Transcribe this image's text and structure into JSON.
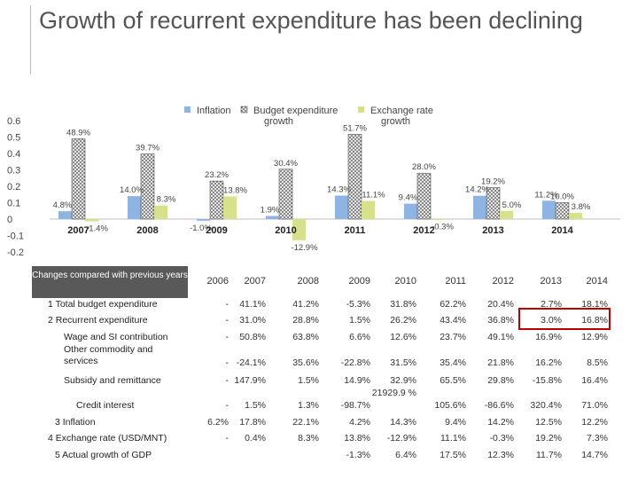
{
  "title": "Growth of recurrent expenditure has been declining",
  "chart_data": {
    "type": "bar",
    "categories": [
      "2007",
      "2008",
      "2009",
      "2010",
      "2011",
      "2012",
      "2013",
      "2014"
    ],
    "series": [
      {
        "name": "Inflation",
        "color": "#8eb4e3",
        "values": [
          4.8,
          14.0,
          -1.0,
          1.9,
          14.3,
          9.4,
          14.2,
          11.2
        ]
      },
      {
        "name": "Budget expenditure growth",
        "color": "#d9d9d9",
        "values": [
          48.9,
          39.7,
          23.2,
          30.4,
          51.7,
          28.0,
          19.2,
          10.0
        ]
      },
      {
        "name": "Exchange rate growth",
        "color": "#d7e08a",
        "values": [
          -1.4,
          8.3,
          13.8,
          -12.9,
          11.1,
          -0.3,
          5.0,
          3.8
        ]
      }
    ],
    "data_labels": [
      [
        "4.8%",
        "48.9%",
        "-1.4%"
      ],
      [
        "14.0%",
        "39.7%",
        "8.3%"
      ],
      [
        "-1.0%",
        "23.2%",
        "13.8%"
      ],
      [
        "1.9%",
        "30.4%",
        "-12.9%"
      ],
      [
        "14.3%",
        "51.7%",
        "11.1%"
      ],
      [
        "9.4%",
        "28.0%",
        "-0.3%"
      ],
      [
        "14.2%",
        "19.2%",
        "5.0%"
      ],
      [
        "11.2%",
        "10.0%",
        "3.8%"
      ]
    ],
    "ylim": [
      -0.2,
      0.6
    ],
    "yticks": [
      "0.6",
      "0.5",
      "0.4",
      "0.3",
      "0.2",
      "0.1",
      "0",
      "-0.1",
      "-0.2"
    ],
    "legend_position": "top-center"
  },
  "table": {
    "header_label": "Changes compared with previous years",
    "years": [
      "2006",
      "2007",
      "2008",
      "2009",
      "2010",
      "2011",
      "2012",
      "2013",
      "2014"
    ],
    "rows": [
      {
        "label": "1 Total budget expenditure",
        "values": [
          "-",
          "41.1%",
          "41.2%",
          "-5.3%",
          "31.8%",
          "62.2%",
          "20.4%",
          "2.7%",
          "18.1%"
        ]
      },
      {
        "label": "2 Recurrent expenditure",
        "values": [
          "-",
          "31.0%",
          "28.8%",
          "1.5%",
          "26.2%",
          "43.4%",
          "36.8%",
          "3.0%",
          "16.8%"
        ]
      },
      {
        "label": "Wage and SI contribution",
        "values": [
          "-",
          "50.8%",
          "63.8%",
          "6.6%",
          "12.6%",
          "23.7%",
          "49.1%",
          "16.9%",
          "12.9%"
        ]
      },
      {
        "label": "Other commodity and services",
        "values": [
          "-",
          "-24.1%",
          "35.6%",
          "-22.8%",
          "31.5%",
          "35.4%",
          "21.8%",
          "16.2%",
          "8.5%"
        ]
      },
      {
        "label": "Subsidy and remittance",
        "values": [
          "-",
          "147.9%",
          "1.5%",
          "14.9%",
          "32.9%",
          "65.5%",
          "29.8%",
          "-15.8%",
          "16.4%"
        ]
      },
      {
        "label": "Credit interest",
        "values": [
          "-",
          "1.5%",
          "1.3%",
          "-98.7%",
          "21929.9 %",
          "105.6%",
          "-86.6%",
          "320.4%",
          "71.0%"
        ]
      },
      {
        "label": "3 Inflation",
        "values": [
          "6.2%",
          "17.8%",
          "22.1%",
          "4.2%",
          "14.3%",
          "9.4%",
          "14.2%",
          "12.5%",
          "12.2%"
        ]
      },
      {
        "label": "4 Exchange rate (USD/MNT)",
        "values": [
          "-",
          "0.4%",
          "8.3%",
          "13.8%",
          "-12.9%",
          "11.1%",
          "-0.3%",
          "19.2%",
          "7.3%"
        ]
      },
      {
        "label": "5 Actual growth of GDP",
        "values": [
          "",
          "",
          "",
          "-1.3%",
          "6.4%",
          "17.5%",
          "12.3%",
          "11.7%",
          "14.7%"
        ]
      }
    ]
  }
}
